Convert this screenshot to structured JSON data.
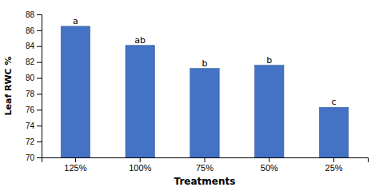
{
  "chart_data": {
    "type": "bar",
    "categories": [
      "125%",
      "100%",
      "75%",
      "50%",
      "25%"
    ],
    "values": [
      86.5,
      84.1,
      81.2,
      81.6,
      76.3
    ],
    "color": "#4472C4",
    "xlabel": "Treatments",
    "ylabel": "Leaf RWC %",
    "ylim": [
      70,
      88
    ],
    "yticks": [
      70,
      72,
      74,
      76,
      78,
      80,
      82,
      84,
      86,
      88
    ],
    "annotations": [
      "a",
      "ab",
      "b",
      "b",
      "c"
    ],
    "grid": false
  }
}
